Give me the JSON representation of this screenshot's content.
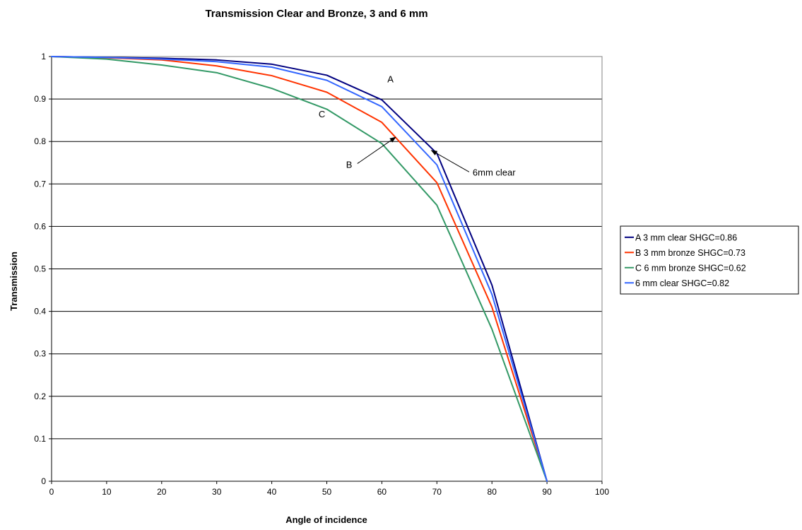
{
  "chart_data": {
    "type": "line",
    "title": "Transmission Clear and Bronze, 3 and 6 mm",
    "xlabel": "Angle of incidence",
    "ylabel": "Transmission",
    "xlim": [
      0,
      100
    ],
    "ylim": [
      0,
      1
    ],
    "x_ticks": [
      "0",
      "10",
      "20",
      "30",
      "40",
      "50",
      "60",
      "70",
      "80",
      "90",
      "100"
    ],
    "y_ticks": [
      "0",
      "0.1",
      "0.2",
      "0.3",
      "0.4",
      "0.5",
      "0.6",
      "0.7",
      "0.8",
      "0.9",
      "1"
    ],
    "grid": "horizontal",
    "legend_position": "right",
    "x": [
      0,
      10,
      20,
      30,
      40,
      50,
      60,
      70,
      80,
      90
    ],
    "series": [
      {
        "name": "A 3 mm clear SHGC=0.86",
        "color": "#000080",
        "values": [
          1.0,
          0.998,
          0.996,
          0.992,
          0.982,
          0.956,
          0.898,
          0.772,
          0.462,
          0.0
        ]
      },
      {
        "name": "B 3 mm bronze SHGC=0.73",
        "color": "#ff3300",
        "values": [
          1.0,
          0.997,
          0.992,
          0.978,
          0.955,
          0.916,
          0.845,
          0.703,
          0.41,
          0.0
        ]
      },
      {
        "name": "C 6 mm bronze SHGC=0.62",
        "color": "#339966",
        "values": [
          1.0,
          0.994,
          0.98,
          0.962,
          0.925,
          0.876,
          0.795,
          0.65,
          0.358,
          0.0
        ]
      },
      {
        "name": "6 mm clear SHGC=0.82",
        "color": "#3366ff",
        "values": [
          1.0,
          0.998,
          0.994,
          0.988,
          0.975,
          0.944,
          0.882,
          0.745,
          0.44,
          0.0
        ]
      }
    ],
    "annotations": [
      {
        "label": "A",
        "x": 61,
        "y": 0.939
      },
      {
        "label": "C",
        "x": 48.5,
        "y": 0.857
      },
      {
        "label": "B",
        "x": 53.5,
        "y": 0.738,
        "arrow_to": {
          "x": 62.5,
          "y": 0.81
        }
      },
      {
        "label": "6mm clear",
        "x": 76.5,
        "y": 0.72,
        "arrow_to": {
          "x": 69,
          "y": 0.779
        }
      }
    ]
  }
}
